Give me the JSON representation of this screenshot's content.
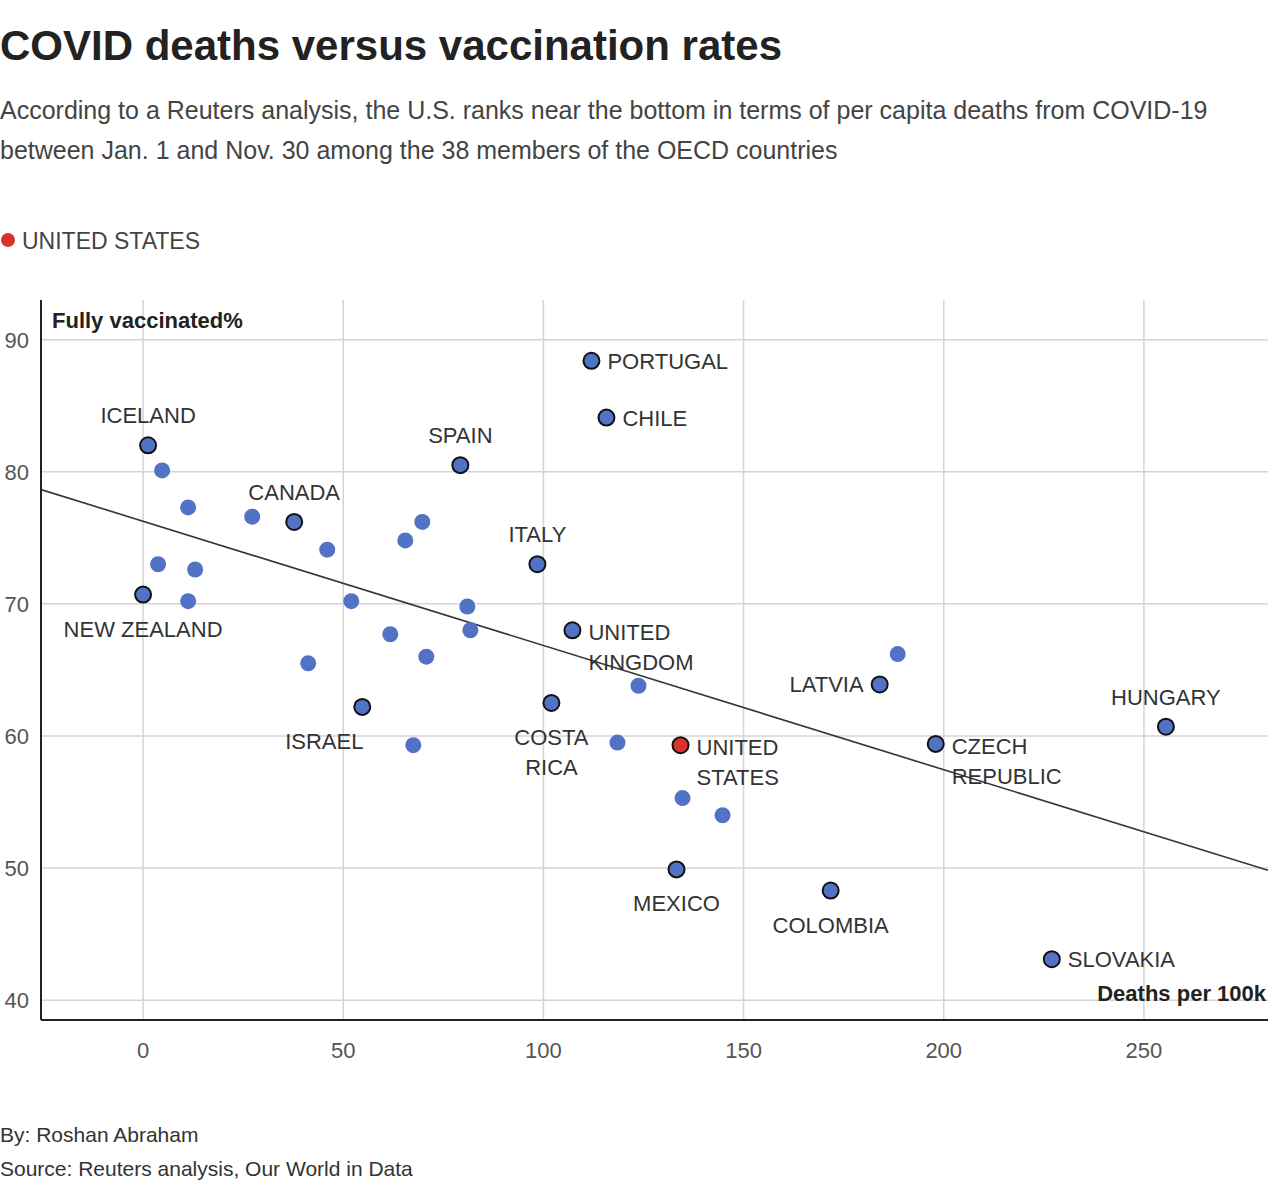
{
  "chart_data": {
    "type": "scatter",
    "title": "COVID deaths versus vaccination rates",
    "subtitle": "According to a Reuters analysis, the U.S. ranks near the bottom in terms of per capita deaths from COVID-19 between Jan. 1 and Nov. 30 among the 38 members of the OECD countries",
    "x_label": "Deaths per 100k",
    "y_label": "Fully vaccinated%",
    "byline": "By: Roshan Abraham",
    "source": "Source: Reuters analysis, Our World in Data",
    "xlim": [
      -25.5,
      281
    ],
    "ylim": [
      38.5,
      93
    ],
    "xticks": [
      0,
      50,
      100,
      150,
      200,
      250
    ],
    "yticks": [
      40,
      50,
      60,
      70,
      80,
      90
    ],
    "grid": true,
    "legend": "top-left",
    "series": [
      {
        "color": "#5272c6",
        "x": [
          112,
          115.75,
          1.25,
          4.75,
          11.25,
          27.25,
          37.75,
          79.25,
          69.75,
          65.5,
          46,
          3.75,
          13,
          98.5,
          0,
          11.25,
          52,
          81,
          81.75,
          107.25,
          61.75,
          70.75,
          41.25,
          188.5,
          184,
          123.75,
          102,
          54.75,
          67.5,
          118.5,
          198,
          255.5,
          134.75,
          144.75,
          133.25,
          171.75,
          227
        ],
        "values": [
          88.4,
          84.1,
          82.0,
          80.1,
          77.3,
          76.6,
          76.2,
          80.5,
          76.2,
          74.8,
          74.1,
          73.0,
          72.6,
          73.0,
          70.7,
          70.2,
          70.2,
          69.8,
          68.0,
          68.0,
          67.7,
          66.0,
          65.5,
          66.2,
          63.9,
          63.8,
          62.5,
          62.2,
          59.3,
          59.5,
          59.4,
          60.7,
          55.3,
          54.0,
          49.9,
          48.3,
          43.1
        ],
        "labels": [
          [
            "PORTUGAL"
          ],
          [
            "CHILE"
          ],
          [
            "ICELAND"
          ],
          null,
          null,
          null,
          [
            "CANADA"
          ],
          [
            "SPAIN"
          ],
          null,
          null,
          null,
          null,
          null,
          [
            "ITALY"
          ],
          [
            "NEW ZEALAND"
          ],
          null,
          null,
          null,
          null,
          [
            "UNITED",
            "KINGDOM"
          ],
          null,
          null,
          null,
          null,
          [
            "LATVIA"
          ],
          null,
          [
            "COSTA",
            "RICA"
          ],
          [
            "ISRAEL"
          ],
          null,
          null,
          [
            "CZECH",
            "REPUBLIC"
          ],
          [
            "HUNGARY"
          ],
          null,
          null,
          [
            "MEXICO"
          ],
          [
            "COLOMBIA"
          ],
          [
            "SLOVAKIA"
          ]
        ]
      },
      {
        "name": "UNITED STATES",
        "color": "#d9342b",
        "x": [
          134.25
        ],
        "values": [
          59.3
        ],
        "labels": [
          [
            "UNITED",
            "STATES"
          ]
        ]
      }
    ],
    "trend": {
      "x": [
        -25.5,
        281
      ],
      "y": [
        78.65,
        49.83
      ]
    }
  }
}
